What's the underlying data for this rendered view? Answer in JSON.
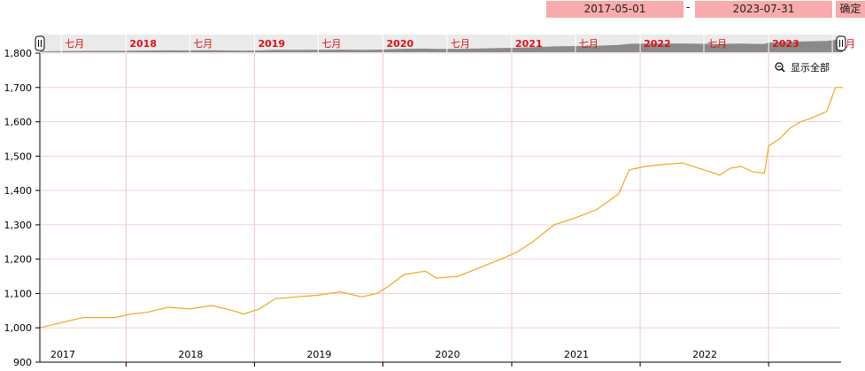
{
  "range": {
    "start": "2017-05-01",
    "separator": "-",
    "end": "2023-07-31",
    "confirm": "确定"
  },
  "show_all": "显示全部",
  "navigator_labels": [
    "七月",
    "2018",
    "七月",
    "2019",
    "七月",
    "2020",
    "七月",
    "2021",
    "七月",
    "2022",
    "七月",
    "2023",
    "七月"
  ],
  "colors": {
    "line": "#f0a81a",
    "grid": "#f5c8c8",
    "nav_label": "#e01010",
    "button": "#f9aaaa"
  },
  "chart_data": {
    "type": "line",
    "x_range": [
      "2017-05-01",
      "2023-07-31"
    ],
    "ylim": [
      900,
      1800
    ],
    "y_ticks": [
      "900",
      "1,000",
      "1,100",
      "1,200",
      "1,300",
      "1,400",
      "1,500",
      "1,600",
      "1,700",
      "1,800"
    ],
    "x_ticks": [
      "2017",
      "2018",
      "2019",
      "2020",
      "2021",
      "2022"
    ],
    "grid": true,
    "series": [
      {
        "x": [
          "2017-05-01",
          "2017-07-01",
          "2017-09-01",
          "2017-12-01",
          "2018-01-15",
          "2018-03-01",
          "2018-05-01",
          "2018-07-01",
          "2018-09-01",
          "2018-11-01",
          "2018-12-01",
          "2019-01-15",
          "2019-03-01",
          "2019-05-01",
          "2019-07-01",
          "2019-09-01",
          "2019-11-01",
          "2019-12-15",
          "2020-01-15",
          "2020-03-01",
          "2020-05-01",
          "2020-06-01",
          "2020-08-01",
          "2020-10-01",
          "2020-12-01",
          "2021-01-15",
          "2021-03-01",
          "2021-05-01",
          "2021-07-01",
          "2021-09-01",
          "2021-11-01",
          "2021-12-01",
          "2022-01-15",
          "2022-03-01",
          "2022-05-01",
          "2022-07-01",
          "2022-08-15",
          "2022-09-15",
          "2022-10-15",
          "2022-11-15",
          "2022-12-20",
          "2023-01-01",
          "2023-02-01",
          "2023-03-01",
          "2023-04-01",
          "2023-05-01",
          "2023-06-15",
          "2023-07-10",
          "2023-07-31"
        ],
        "values": [
          1000,
          1015,
          1030,
          1030,
          1040,
          1045,
          1060,
          1055,
          1065,
          1050,
          1040,
          1055,
          1085,
          1090,
          1095,
          1105,
          1090,
          1100,
          1120,
          1155,
          1165,
          1145,
          1150,
          1175,
          1200,
          1220,
          1250,
          1300,
          1320,
          1345,
          1390,
          1460,
          1470,
          1475,
          1480,
          1460,
          1445,
          1465,
          1470,
          1455,
          1450,
          1530,
          1550,
          1580,
          1600,
          1610,
          1630,
          1700,
          1700
        ]
      }
    ]
  }
}
